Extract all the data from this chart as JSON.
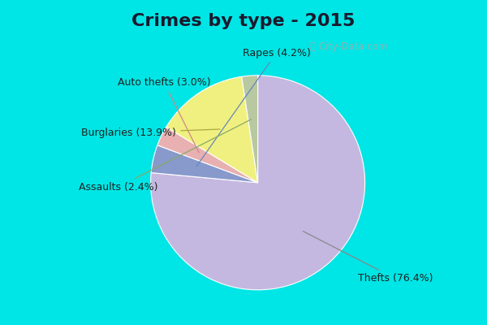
{
  "title": "Crimes by type - 2015",
  "slices": [
    {
      "label": "Thefts (76.4%)",
      "value": 76.4,
      "color": "#c4b8e0"
    },
    {
      "label": "Rapes (4.2%)",
      "value": 4.2,
      "color": "#8899cc"
    },
    {
      "label": "Auto thefts (3.0%)",
      "value": 3.0,
      "color": "#e8b0b0"
    },
    {
      "label": "Burglaries (13.9%)",
      "value": 13.9,
      "color": "#f0f080"
    },
    {
      "label": "Assaults (2.4%)",
      "value": 2.4,
      "color": "#b8c8a0"
    }
  ],
  "bg_outer": "#00e5e5",
  "bg_inner_color": "#e8f5e8",
  "title_fontsize": 16,
  "label_fontsize": 9,
  "startangle": 90
}
